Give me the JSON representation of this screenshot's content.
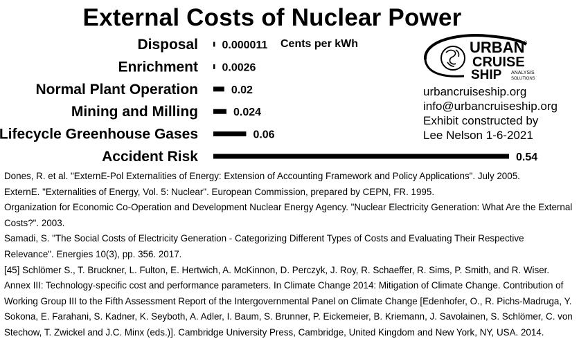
{
  "chart_data": {
    "type": "bar",
    "orientation": "horizontal",
    "title": "External Costs of Nuclear Power",
    "unit": "Cents per kWh",
    "categories": [
      "Disposal",
      "Enrichment",
      "Normal Plant Operation",
      "Mining and Milling",
      "Lifecycle Greenhouse Gases",
      "Accident Risk"
    ],
    "values": [
      1.1e-05,
      0.0026,
      0.02,
      0.024,
      0.06,
      0.54
    ],
    "value_labels": [
      "0.000011",
      "0.0026",
      "0.02",
      "0.024",
      "0.06",
      "0.54"
    ],
    "xlim": [
      0,
      0.54
    ],
    "bar_color": "#000000",
    "grid": false,
    "legend": "none"
  },
  "logo": {
    "word1": "URBAN",
    "word2": "CRUISE",
    "word3": "SHIP",
    "tag1": "ANALYSIS",
    "tag2": "SOLUTIONS",
    "mark": "®"
  },
  "contact": {
    "website": "urbancruiseship.org",
    "email": "info@urbancruiseship.org",
    "credit1": "Exhibit constructed by",
    "credit2": "Lee Nelson 1-6-2021"
  },
  "references": [
    "Dones, R. et al. \"ExternE-Pol Externalities of Energy: Extension of Accounting Framework and Policy Applications\". July 2005.",
    "ExternE. \"Externalities of Energy, Vol. 5: Nuclear\". European Commission, prepared by CEPN, FR. 1995.",
    "Organization for Economic Co-Operation and Development Nuclear Energy Agency. \"Nuclear Electricity Generation: What Are the External Costs?\". 2003.",
    "Samadi, S. \"The Social Costs of Electricity Generation - Categorizing Different Types of Costs and Evaluating Their Respective Relevance\". Energies 10(3), pp. 356. 2017.",
    "[45] Schlömer S., T. Bruckner, L. Fulton, E. Hertwich, A. McKinnon, D. Perczyk, J. Roy, R. Schaeffer, R. Sims, P. Smith, and R. Wiser. Annex III: Technology-specific cost and performance parameters. In Climate Change 2014: Mitigation of Climate Change. Contribution of Working Group III to the Fifth Assessment Report of the Intergovernmental Panel on Climate Change [Edenhofer, O., R. Pichs-Madruga, Y. Sokona, E. Farahani, S. Kadner, K. Seyboth, A. Adler, I. Baum, S. Brunner, P. Eickemeier, B. Kriemann, J. Savolainen, S. Schlömer, C. von Stechow, T. Zwickel and J.C. Minx (eds.)]. Cambridge University Press, Cambridge, United Kingdom and New York, NY, USA. 2014."
  ]
}
